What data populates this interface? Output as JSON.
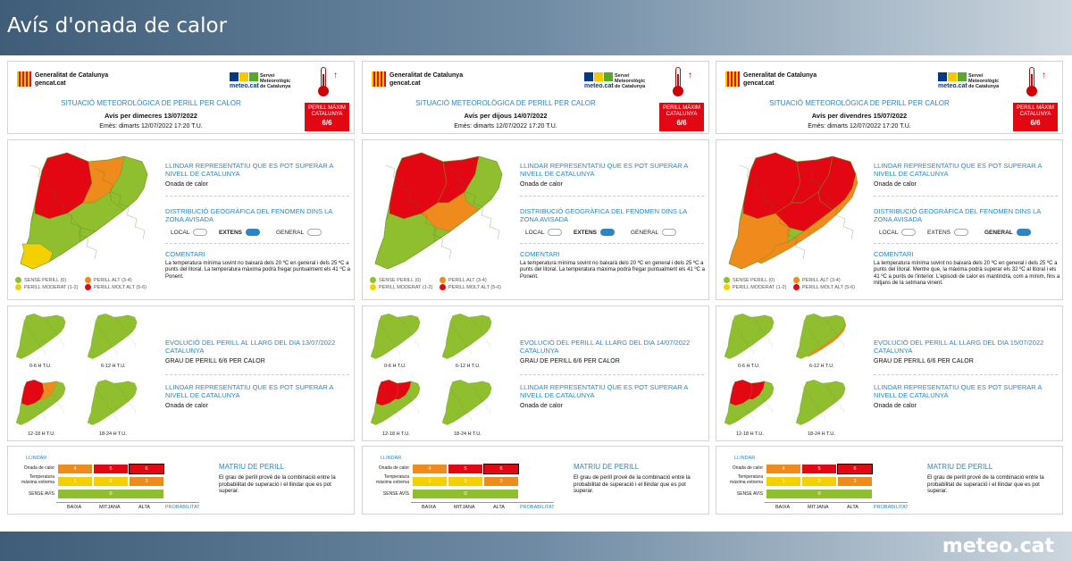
{
  "page_title": "Avís d'onada de calor",
  "brand": "meteo.cat",
  "colors": {
    "sense": "#8fbf2f",
    "moderat": "#f5d000",
    "alt": "#ef8a1c",
    "molt_alt": "#e30613",
    "blue": "#2b86c5"
  },
  "common": {
    "generalitat": "Generalitat de Catalunya",
    "gencat": "gencat.cat",
    "meteo_logo": "meteo.cat",
    "servei": "Servei Meteorològic de Catalunya",
    "situacio": "SITUACIÓ METEOROLÒGICA DE PERILL PER CALOR",
    "warn_label": "PERILL MÀXIM CATALUNYA",
    "warn_level": "6/6",
    "llindar_title": "LLINDAR REPRESENTATIU QUE ES POT SUPERAR A NIVELL DE CATALUNYA",
    "llindar_value": "Onada de calor",
    "dist_title": "DISTRIBUCIÓ GEOGRÀFICA DEL FENOMEN DINS LA ZONA AVISADA",
    "local": "LOCAL",
    "extens": "EXTENS",
    "general": "GENERAL",
    "comentari_title": "COMENTARI",
    "legend": {
      "sense": "SENSE PERILL (0)",
      "moderat": "PERILL MODERAT (1-2)",
      "alt": "PERILL ALT (3-4)",
      "molt_alt": "PERILL MOLT ALT (5-6)"
    },
    "grau": "GRAU DE PERILL 6/6 PER CALOR",
    "time_labels": [
      "0-6 H T.U.",
      "6-12 H T.U.",
      "12-18 H T.U.",
      "18-24 H T.U."
    ],
    "matrix": {
      "llindar": "LLINDAR",
      "row_onada": "Onada de calor",
      "row_temp": "Temperatura màxima extrema",
      "row_sense": "SENSE AVÍS",
      "cols": [
        "BAIXA",
        "MITJANA",
        "ALTA"
      ],
      "probabilitat": "PROBABILITAT",
      "top_row": [
        "4",
        "5",
        "6"
      ],
      "mid_row": [
        "1",
        "2",
        "3"
      ],
      "bottom": "0",
      "title": "MATRIU DE PERILL",
      "desc": "El grau de perill prové de la combinació entre la probabilitat de superació i el llindar que es pot superar."
    }
  },
  "panels": [
    {
      "avis": "Avís per dimecres 13/07/2022",
      "emes": "Emès: dimarts 12/07/2022 17:20 T.U.",
      "dist": "EXTENS",
      "comment": "La temperatura mínima sovint no baixarà dels 20 ºC en general i dels 25 ºC a punts del litoral. La temperatura màxima podrà fregar puntualment els 41 ºC a Ponent.",
      "evol_title": "EVOLUCIÓ DEL PERILL AL LLARG DEL DIA 13/07/2022 CATALUNYA"
    },
    {
      "avis": "Avís per dijous 14/07/2022",
      "emes": "Emès: dimarts 12/07/2022 17:20 T.U.",
      "dist": "EXTENS",
      "comment": "La temperatura mínima sovint no baixarà dels 20 ºC en general i dels 25 ºC a punts del litoral. La temperatura màxima podrà fregar puntualment els 41 ºC a Ponent.",
      "evol_title": "EVOLUCIÓ DEL PERILL AL LLARG DEL DIA 14/07/2022 CATALUNYA"
    },
    {
      "avis": "Avís per divendres 15/07/2022",
      "emes": "Emès: dimarts 12/07/2022 17:20 T.U.",
      "dist": "GENERAL",
      "comment": "La temperatura mínima sovint no baixarà dels 20 ºC en general i dels 25 ºC a punts del litoral. Mentre que, la màxima podrà superar els 32 ºC al litoral i els 41 ºC a punts de l'interior. L'episodi de calor es mantindrà, com a mínim, fins a mitjans de la setmana vinent.",
      "evol_title": "EVOLUCIÓ DEL PERILL AL LLARG DEL DIA 15/07/2022 CATALUNYA"
    }
  ]
}
